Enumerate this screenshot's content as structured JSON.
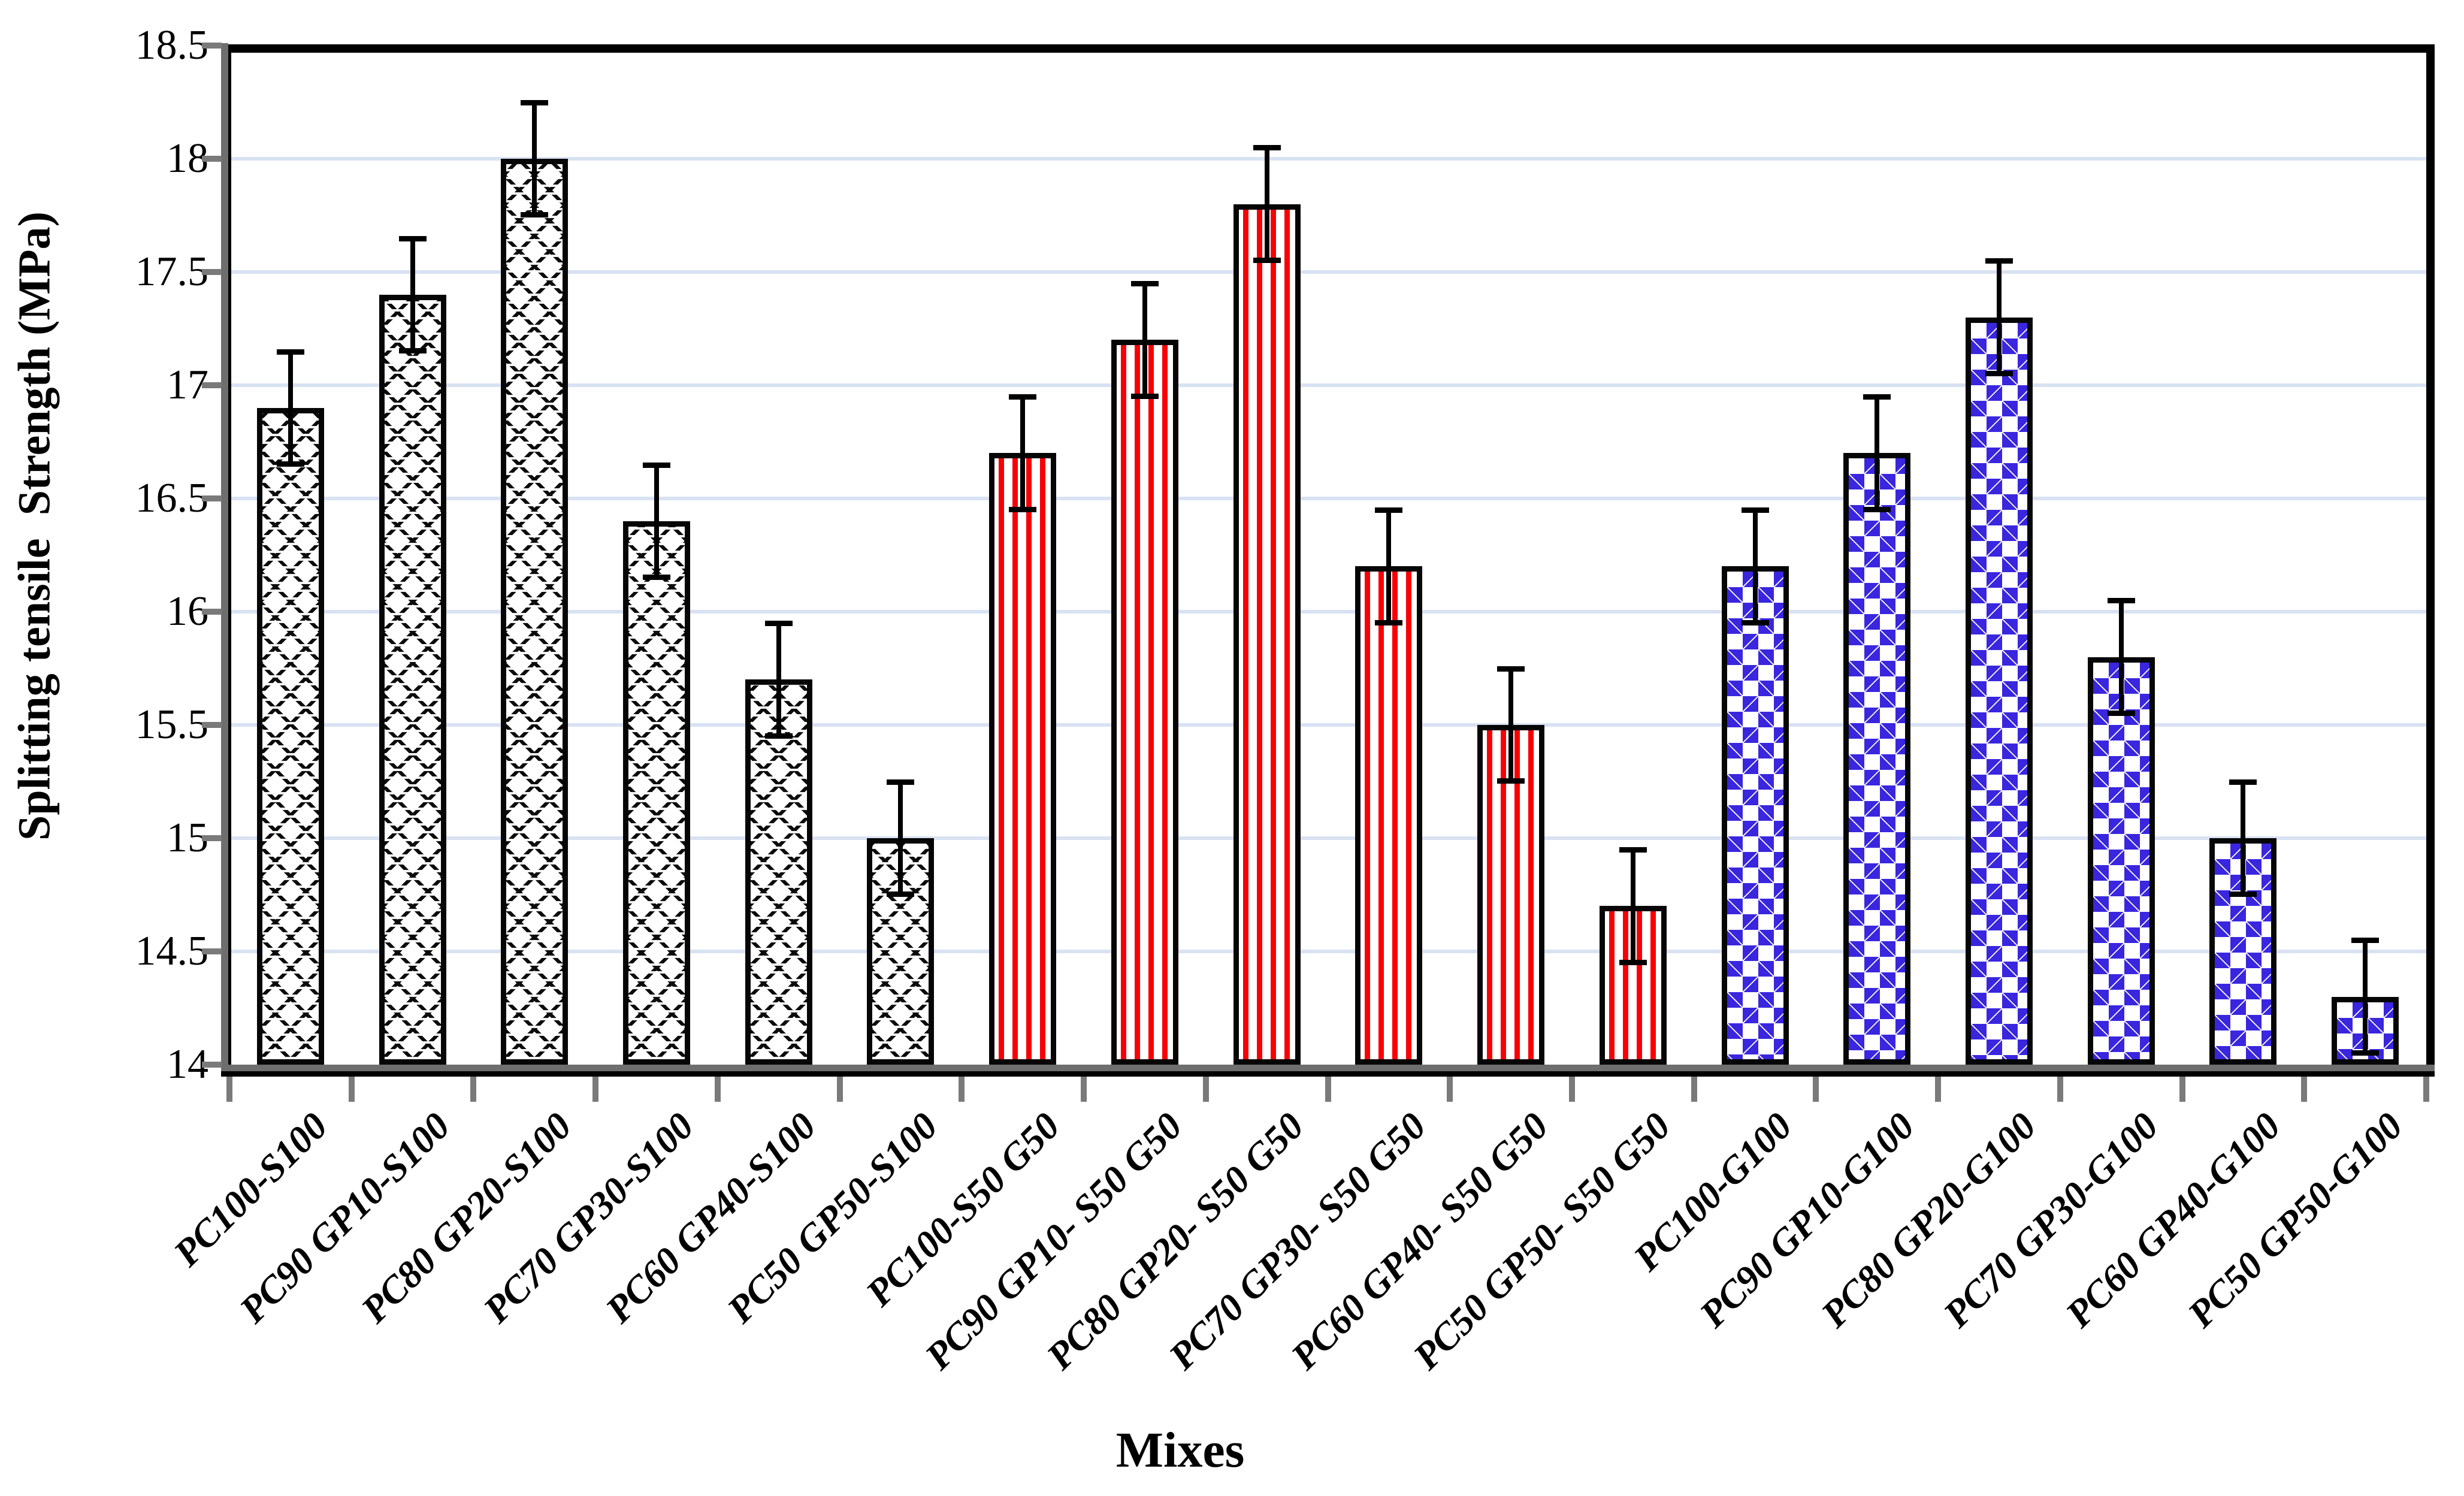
{
  "figure": {
    "background": "#ffffff",
    "plot_border_color": "#000000",
    "axis_line_color": "#6e6e6e"
  },
  "chart_data": {
    "type": "bar",
    "title": "",
    "xlabel": "Mixes",
    "ylabel": "Splitting tensile  Strength (MPa)",
    "ylim": [
      14,
      18.5
    ],
    "ytick_step": 0.5,
    "yticks": [
      "14",
      "14.5",
      "15",
      "15.5",
      "16",
      "16.5",
      "17",
      "17.5",
      "18",
      "18.5"
    ],
    "grid": {
      "horizontal": true,
      "color": "#d9e2f3",
      "levels": [
        14.5,
        15,
        15.5,
        16,
        16.5,
        17,
        17.5,
        18
      ]
    },
    "legend": "none",
    "categories": [
      "PC100-S100",
      "PC90 GP10-S100",
      "PC80 GP20-S100",
      "PC70 GP30-S100",
      "PC60 GP40-S100",
      "PC50 GP50-S100",
      "PC100-S50 G50",
      "PC90 GP10- S50 G50",
      "PC80 GP20- S50 G50",
      "PC70 GP30- S50 G50",
      "PC60 GP40- S50 G50",
      "PC50 GP50- S50 G50",
      "PC100-G100",
      "PC90 GP10-G100",
      "PC80 GP20-G100",
      "PC70 GP30-G100",
      "PC60 GP40-G100",
      "PC50 GP50-G100"
    ],
    "values": [
      16.9,
      17.4,
      18.0,
      16.4,
      15.7,
      15.0,
      16.7,
      17.2,
      17.8,
      16.2,
      15.5,
      14.7,
      16.2,
      16.7,
      17.3,
      15.8,
      15.0,
      14.3
    ],
    "error_bars": {
      "symmetric": true,
      "value": 0.26
    },
    "series_groups": [
      {
        "name": "S100 mixes",
        "pattern": "black-dotted-crosshatch",
        "color": "#0c0c0c",
        "indices": [
          0,
          1,
          2,
          3,
          4,
          5
        ]
      },
      {
        "name": "S50 G50 mixes",
        "pattern": "red-vertical-stripes",
        "color": "#f90005",
        "indices": [
          6,
          7,
          8,
          9,
          10,
          11
        ]
      },
      {
        "name": "G100 mixes",
        "pattern": "blue-diamond-checker",
        "color": "#3a26de",
        "indices": [
          12,
          13,
          14,
          15,
          16,
          17
        ]
      }
    ],
    "bar_outline_color": "#000000"
  }
}
